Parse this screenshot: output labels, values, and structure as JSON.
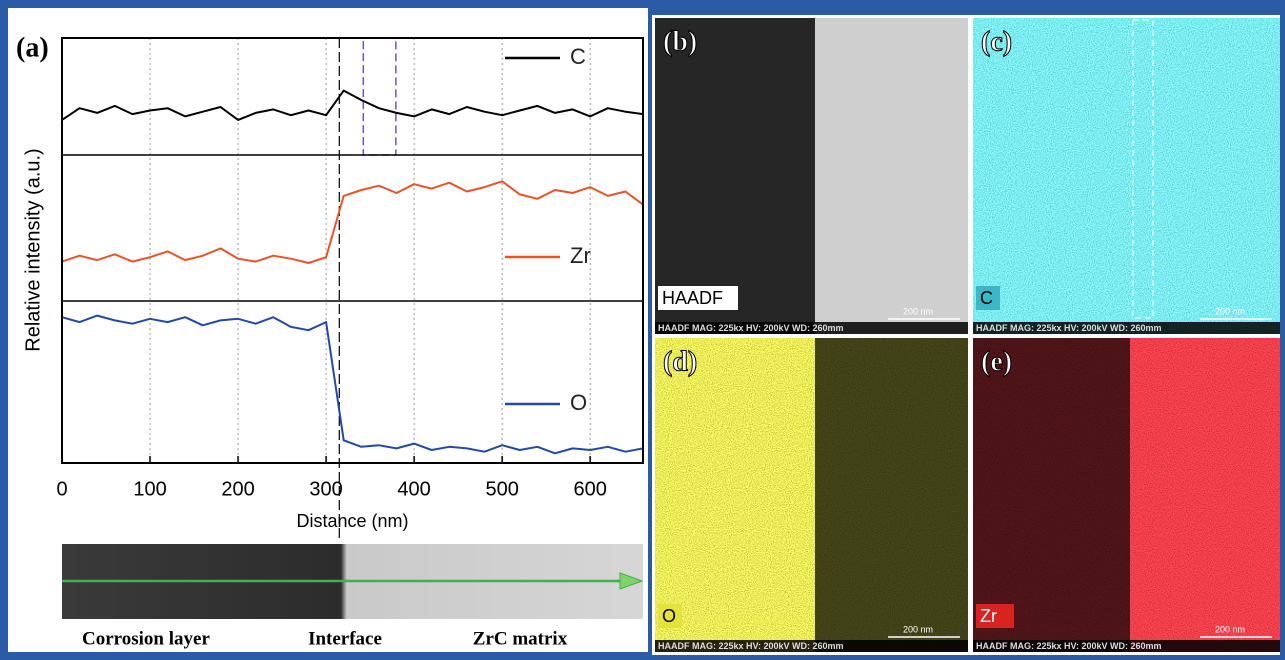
{
  "chart_data": {
    "type": "line",
    "label": "(a)",
    "xlabel": "Distance (nm)",
    "ylabel": "Relative intensity (a.u.)",
    "x": [
      0,
      20,
      40,
      60,
      80,
      100,
      120,
      140,
      160,
      180,
      200,
      220,
      240,
      260,
      280,
      300,
      320,
      340,
      360,
      380,
      400,
      420,
      440,
      460,
      480,
      500,
      520,
      540,
      560,
      580,
      600,
      620,
      640,
      660
    ],
    "xlim": [
      0,
      660
    ],
    "xticks": [
      0,
      100,
      200,
      300,
      400,
      500,
      600
    ],
    "grid": true,
    "interface_x": 315,
    "highlight_x": [
      315,
      352
    ],
    "series": [
      {
        "name": "C",
        "color": "#000000",
        "ylim": [
          0,
          1
        ],
        "values": [
          0.3,
          0.4,
          0.36,
          0.42,
          0.35,
          0.38,
          0.4,
          0.33,
          0.37,
          0.41,
          0.3,
          0.36,
          0.39,
          0.34,
          0.38,
          0.34,
          0.55,
          0.47,
          0.4,
          0.36,
          0.33,
          0.39,
          0.35,
          0.41,
          0.37,
          0.34,
          0.38,
          0.42,
          0.36,
          0.39,
          0.33,
          0.4,
          0.37,
          0.35
        ]
      },
      {
        "name": "Zr",
        "color": "#ea5328",
        "ylim": [
          0,
          1
        ],
        "values": [
          0.27,
          0.31,
          0.28,
          0.32,
          0.27,
          0.3,
          0.34,
          0.28,
          0.31,
          0.36,
          0.29,
          0.27,
          0.31,
          0.29,
          0.26,
          0.3,
          0.72,
          0.76,
          0.79,
          0.74,
          0.8,
          0.77,
          0.81,
          0.75,
          0.78,
          0.82,
          0.73,
          0.7,
          0.76,
          0.74,
          0.78,
          0.72,
          0.75,
          0.66
        ]
      },
      {
        "name": "O",
        "color": "#2448a8",
        "ylim": [
          0,
          1
        ],
        "values": [
          0.9,
          0.87,
          0.91,
          0.88,
          0.86,
          0.89,
          0.87,
          0.9,
          0.85,
          0.88,
          0.89,
          0.86,
          0.9,
          0.84,
          0.82,
          0.87,
          0.14,
          0.1,
          0.11,
          0.09,
          0.12,
          0.08,
          0.1,
          0.09,
          0.07,
          0.11,
          0.08,
          0.1,
          0.06,
          0.09,
          0.08,
          0.1,
          0.07,
          0.09
        ]
      }
    ]
  },
  "strip": {
    "labels": [
      "Corrosion layer",
      "Interface",
      "ZrC matrix"
    ]
  },
  "images": [
    {
      "label": "(b)",
      "tag": "HAADF",
      "scale": "200 nm",
      "footer": "HAADF  MAG: 225kx  HV: 200kV  WD: 260mm"
    },
    {
      "label": "(c)",
      "tag": "C",
      "scale": "200 nm",
      "footer": "HAADF  MAG: 225kx  HV: 200kV  WD: 260mm"
    },
    {
      "label": "(d)",
      "tag": "O",
      "scale": "200 nm",
      "footer": "HAADF  MAG: 225kx  HV: 200kV  WD: 260mm"
    },
    {
      "label": "(e)",
      "tag": "Zr",
      "scale": "200 nm",
      "footer": "HAADF  MAG: 225kx  HV: 200kV  WD: 260mm"
    }
  ]
}
